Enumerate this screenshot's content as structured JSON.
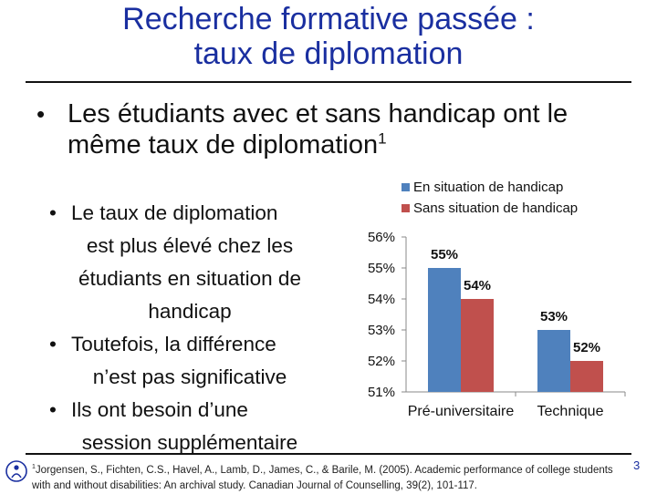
{
  "slide": {
    "title_line1": "Recherche formative passée :",
    "title_line2": "taux de diplomation",
    "main_bullet": "Les étudiants avec et sans handicap ont le même taux de diplomation",
    "main_bullet_sup": "1",
    "sub_bullets": [
      [
        "Le taux de diplomation",
        "est plus élevé chez les",
        "étudiants en situation de",
        "handicap"
      ],
      [
        "Toutefois, la différence",
        "n’est pas significative"
      ],
      [
        "Ils ont besoin d’une",
        "session supplémentaire"
      ]
    ],
    "reference_sup": "1",
    "reference": "Jorgensen, S., Fichten, C.S., Havel, A., Lamb, D., James, C., & Barile, M. (2005). Academic performance of college students with and without disabilities: An archival study. Canadian Journal of Counselling, 39(2), 101-117.",
    "page_number": "3",
    "logo_icon": "adaptech-logo-icon",
    "colors": {
      "title": "#1a2fa0",
      "series_1": "#4f81bd",
      "series_2": "#c0504d"
    }
  },
  "chart_data": {
    "type": "bar",
    "categories": [
      "Pré-universitaire",
      "Technique"
    ],
    "series": [
      {
        "name": "En situation de handicap",
        "values": [
          55,
          53
        ],
        "labels": [
          "55%",
          "53%"
        ],
        "color": "#4f81bd"
      },
      {
        "name": "Sans situation de handicap",
        "values": [
          54,
          52
        ],
        "labels": [
          "54%",
          "52%"
        ],
        "color": "#c0504d"
      }
    ],
    "ylim": [
      51,
      56
    ],
    "yticks": [
      51,
      52,
      53,
      54,
      55,
      56
    ],
    "ytick_labels": [
      "51%",
      "52%",
      "53%",
      "54%",
      "55%",
      "56%"
    ],
    "legend_position": "top-right",
    "grid": false,
    "title": "",
    "xlabel": "",
    "ylabel": ""
  }
}
